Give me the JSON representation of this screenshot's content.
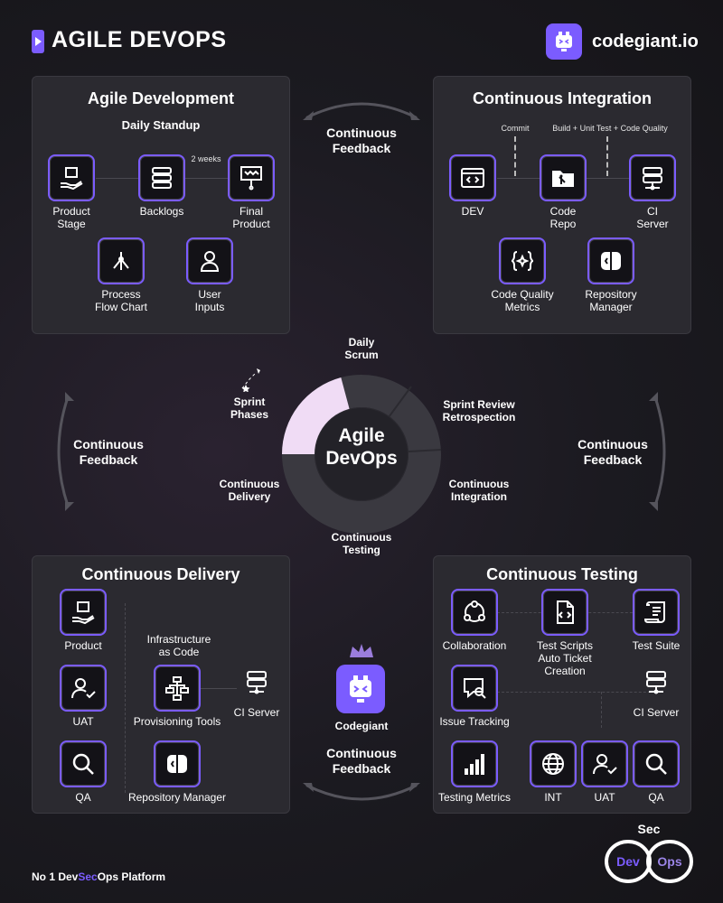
{
  "header": {
    "title": "AGILE DEVOPS",
    "brand": "codegiant.io"
  },
  "agile": {
    "title": "Agile Development",
    "subtitle": "Daily Standup",
    "note": "2 weeks",
    "items": [
      {
        "label": "Product\nStage",
        "icon": "hand-box-icon"
      },
      {
        "label": "Backlogs",
        "icon": "stack-icon"
      },
      {
        "label": "Final\nProduct",
        "icon": "board-icon"
      },
      {
        "label": "Process\nFlow Chart",
        "icon": "flow-icon"
      },
      {
        "label": "User\nInputs",
        "icon": "user-icon"
      }
    ]
  },
  "ci": {
    "title": "Continuous Integration",
    "commit": "Commit",
    "build": "Build + Unit Test + Code Quality",
    "items": [
      {
        "label": "DEV"
      },
      {
        "label": "Code\nRepo"
      },
      {
        "label": "CI\nServer"
      },
      {
        "label": "Code Quality\nMetrics"
      },
      {
        "label": "Repository\nManager"
      }
    ]
  },
  "cd": {
    "title": "Continuous Delivery",
    "iac": "Infrastructure\nas Code",
    "items": [
      {
        "label": "Product"
      },
      {
        "label": "UAT"
      },
      {
        "label": "Provisioning Tools"
      },
      {
        "label": "CI Server"
      },
      {
        "label": "QA"
      },
      {
        "label": "Repository Manager"
      }
    ]
  },
  "ct": {
    "title": "Continuous Testing",
    "items": [
      {
        "label": "Collaboration"
      },
      {
        "label": "Test Scripts\nAuto Ticket\nCreation"
      },
      {
        "label": "Test Suite"
      },
      {
        "label": "Issue Tracking"
      },
      {
        "label": "CI Server"
      },
      {
        "label": "Testing Metrics"
      },
      {
        "label": "INT"
      },
      {
        "label": "UAT"
      },
      {
        "label": "QA"
      }
    ]
  },
  "feedback": {
    "top": "Continuous\nFeedback",
    "left": "Continuous\nFeedback",
    "right": "Continuous\nFeedback",
    "bottom": "Continuous\nFeedback"
  },
  "ring": {
    "center": "Agile\nDevOps",
    "daily_scrum": "Daily\nScrum",
    "sprint_phases": "Sprint\nPhases",
    "sprint_review": "Sprint Review\nRetrospection",
    "cont_delivery": "Continuous\nDelivery",
    "cont_integration": "Continuous\nIntegration",
    "cont_testing": "Continuous\nTesting"
  },
  "codegiant": "Codegiant",
  "footer": {
    "pre": "No 1 Dev",
    "sec": "Sec",
    "post": "Ops Platform"
  },
  "badge": {
    "sec": "Sec",
    "dev": "Dev",
    "ops": "Ops"
  },
  "colors": {
    "accent": "#7b5cff",
    "panel": "#2b2a30",
    "ring_highlight": "#f0dcf5"
  }
}
